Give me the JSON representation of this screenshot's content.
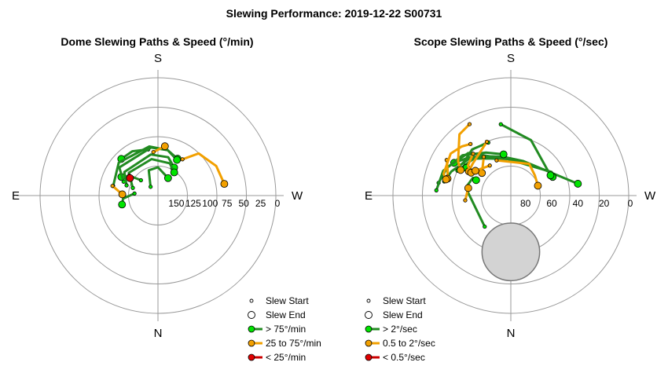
{
  "title": "Slewing Performance: 2019-12-22 S00731",
  "colors": {
    "fast": "#228B22",
    "fast_marker": "#00e400",
    "medium": "#f2a000",
    "medium_marker": "#f2a000",
    "slow": "#cc0000",
    "slow_marker": "#e00000",
    "grid": "#999999",
    "excluded_zone": "#d3d3d3"
  },
  "chart_data": [
    {
      "type": "polar-path",
      "title": "Dome Slewing Paths & Speed (°/min)",
      "direction_labels": {
        "top": "S",
        "bottom": "N",
        "left": "E",
        "right": "W"
      },
      "radial_range": [
        175,
        0
      ],
      "radial_tick_labels": [
        "150",
        "125",
        "100",
        "75",
        "50",
        "25",
        "0"
      ],
      "radial_tick_values": [
        150,
        125,
        100,
        75,
        50,
        25,
        0
      ],
      "legend": [
        {
          "label": "Slew Start",
          "kind": "start"
        },
        {
          "label": "Slew End",
          "kind": "end"
        },
        {
          "label": "> 75°/min",
          "kind": "fast"
        },
        {
          "label": "25 to 75°/min",
          "kind": "medium"
        },
        {
          "label": "< 25°/min",
          "kind": "slow"
        }
      ],
      "paths": [
        {
          "speed": "fast",
          "points": [
            [
              140,
              -85
            ],
            [
              123,
              -95
            ],
            [
              120,
              -104
            ]
          ]
        },
        {
          "speed": "fast",
          "points": [
            [
              141,
              -48
            ],
            [
              124,
              -55
            ],
            [
              114,
              -63
            ]
          ]
        },
        {
          "speed": "fast",
          "points": [
            [
              105,
              -12
            ],
            [
              99,
              -30
            ],
            [
              98,
              -45
            ]
          ]
        },
        {
          "speed": "fast",
          "points": [
            [
              107,
              -78
            ],
            [
              99,
              -50
            ],
            [
              101,
              -10
            ],
            [
              106,
              12
            ],
            [
              113,
              28
            ]
          ]
        },
        {
          "speed": "fast",
          "points": [
            [
              120,
              -68
            ],
            [
              104,
              -54
            ],
            [
              103,
              -8
            ],
            [
              106,
              12
            ],
            [
              115,
              28
            ]
          ]
        },
        {
          "speed": "fast",
          "points": [
            [
              126,
              -72
            ],
            [
              114,
              -55
            ],
            [
              113,
              -10
            ],
            [
              116,
              15
            ],
            [
              127,
              30
            ]
          ]
        },
        {
          "speed": "fast",
          "points": [
            [
              136,
              -73
            ],
            [
              120,
              -52
            ],
            [
              120,
              -10
            ],
            [
              124,
              20
            ],
            [
              133,
              35
            ]
          ]
        },
        {
          "speed": "fast",
          "points": [
            [
              158,
              -40
            ],
            [
              135,
              -20
            ],
            [
              133,
              0
            ],
            [
              145,
              30
            ]
          ]
        },
        {
          "speed": "medium",
          "points": [
            [
              110,
              -6
            ],
            [
              101,
              8
            ]
          ]
        },
        {
          "speed": "medium",
          "points": [
            [
              106,
              -78
            ],
            [
              122,
              -88
            ]
          ]
        },
        {
          "speed": "medium",
          "points": [
            [
              110,
              34
            ],
            [
              88,
              44
            ],
            [
              78,
              63
            ],
            [
              75,
              80
            ]
          ]
        },
        {
          "speed": "slow",
          "points": [
            [
              123,
              -55
            ],
            [
              126,
              -58
            ]
          ]
        }
      ]
    },
    {
      "type": "polar-path",
      "title": "Scope Slewing Paths & Speed (°/sec)",
      "direction_labels": {
        "top": "S",
        "bottom": "N",
        "left": "E",
        "right": "W"
      },
      "radial_range": [
        90,
        0
      ],
      "radial_tick_labels": [
        "80",
        "60",
        "40",
        "20",
        "0"
      ],
      "radial_tick_values": [
        80,
        60,
        40,
        20,
        0
      ],
      "excluded_zone": {
        "type": "circle",
        "center_alt": 47,
        "center_az": 180,
        "radius_deg": 22
      },
      "legend": [
        {
          "label": "Slew Start",
          "kind": "start"
        },
        {
          "label": "Slew End",
          "kind": "end"
        },
        {
          "label": "> 2°/sec",
          "kind": "fast"
        },
        {
          "label": "0.5 to 2°/sec",
          "kind": "medium"
        },
        {
          "label": "< 0.5°/sec",
          "kind": "slow"
        }
      ],
      "paths": [
        {
          "speed": "fast",
          "points": [
            [
              59,
              -140
            ],
            [
              55,
              -80
            ],
            [
              58,
              -65
            ],
            [
              61,
              -66
            ]
          ]
        },
        {
          "speed": "fast",
          "points": [
            [
              38,
              -78
            ],
            [
              41,
              -68
            ],
            [
              48,
              -45
            ],
            [
              57,
              -28
            ],
            [
              47,
              -47
            ],
            [
              40,
              -60
            ]
          ]
        },
        {
          "speed": "fast",
          "points": [
            [
              34,
              -80
            ],
            [
              37,
              -66
            ],
            [
              44,
              -45
            ],
            [
              56,
              -28
            ],
            [
              60,
              -10
            ],
            [
              62,
              20
            ],
            [
              38,
              80
            ]
          ]
        },
        {
          "speed": "fast",
          "points": [
            [
              45,
              -65
            ],
            [
              50,
              -45
            ],
            [
              58,
              -28
            ],
            [
              62,
              -5
            ],
            [
              54,
              60
            ],
            [
              55,
              66
            ]
          ]
        },
        {
          "speed": "fast",
          "points": [
            [
              46,
              -23
            ],
            [
              44,
              -40
            ],
            [
              46,
              -55
            ],
            [
              50,
              -58
            ]
          ]
        },
        {
          "speed": "fast",
          "points": [
            [
              33,
              -86
            ],
            [
              35,
              -70
            ],
            [
              42,
              -50
            ],
            [
              52,
              -30
            ],
            [
              58,
              -10
            ]
          ]
        },
        {
          "speed": "fast",
          "points": [
            [
              35,
              -8
            ],
            [
              45,
              20
            ],
            [
              56,
              63
            ]
          ]
        },
        {
          "speed": "medium",
          "points": [
            [
              27,
              -30
            ],
            [
              29,
              -40
            ],
            [
              42,
              -57
            ],
            [
              47,
              -63
            ]
          ]
        },
        {
          "speed": "medium",
          "points": [
            [
              45,
              -24
            ],
            [
              52,
              -50
            ],
            [
              53,
              -60
            ]
          ]
        },
        {
          "speed": "medium",
          "points": [
            [
              47,
              -42
            ],
            [
              50,
              -55
            ],
            [
              55,
              -60
            ]
          ]
        },
        {
          "speed": "medium",
          "points": [
            [
              34,
              -61
            ],
            [
              38,
              -68
            ],
            [
              40,
              -75
            ]
          ]
        },
        {
          "speed": "medium",
          "points": [
            [
              40,
              -38
            ],
            [
              37,
              -45
            ],
            [
              34,
              -55
            ],
            [
              36,
              -72
            ],
            [
              39,
              -76
            ]
          ]
        },
        {
          "speed": "medium",
          "points": [
            [
              61,
              -22
            ],
            [
              62,
              30
            ],
            [
              66,
              50
            ],
            [
              68,
              70
            ]
          ]
        },
        {
          "speed": "medium",
          "points": [
            [
              54,
              -35
            ],
            [
              62,
              -52
            ]
          ]
        },
        {
          "speed": "medium",
          "points": [
            [
              62,
              -35
            ],
            [
              57,
              -55
            ]
          ]
        },
        {
          "speed": "medium",
          "points": [
            [
              55,
              -96
            ],
            [
              57,
              -80
            ]
          ]
        }
      ]
    }
  ]
}
